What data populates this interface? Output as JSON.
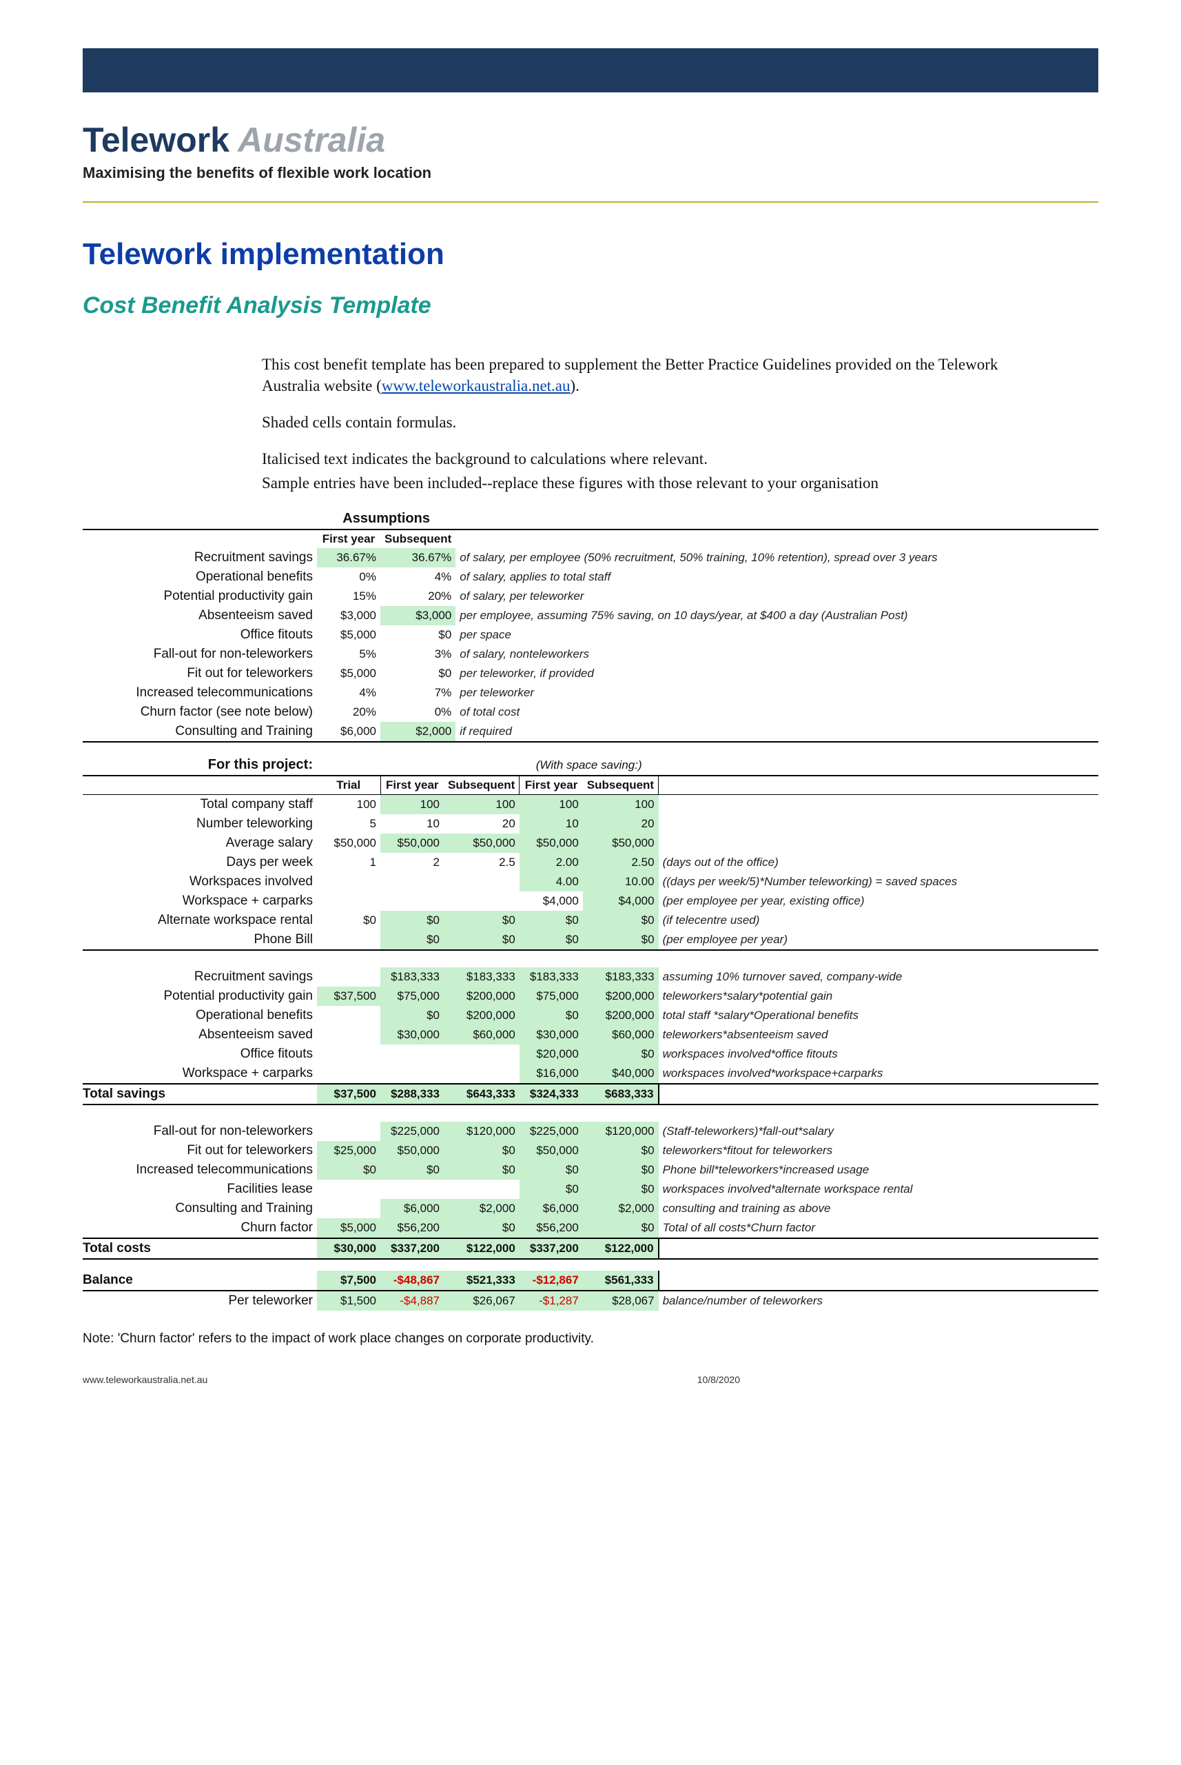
{
  "brand": {
    "name1": "Telework",
    "name2": " Australia",
    "tagline": "Maximising the benefits of flexible work location"
  },
  "titles": {
    "h1": "Telework implementation",
    "h2": "Cost Benefit Analysis Template"
  },
  "intro": {
    "p1a": "This cost benefit template has been prepared to supplement the Better Practice Guidelines provided on the Telework Australia website (",
    "link": "www.teleworkaustralia.net.au",
    "p1b": ").",
    "p2": "Shaded cells contain formulas.",
    "p3": "Italicised text indicates the background to calculations where relevant.",
    "p4": "Sample entries have been included--replace these figures with those relevant to your organisation"
  },
  "labels": {
    "assumptions": "Assumptions",
    "first_year": "First year",
    "subsequent": "Subsequent",
    "for_project": "For this project:",
    "with_space": "(With space saving:)",
    "trial": "Trial",
    "total_savings": "Total savings",
    "total_costs": "Total costs",
    "balance": "Balance",
    "per_tw": "Per teleworker",
    "note": "Note: 'Churn factor' refers to the impact of work place changes on corporate productivity."
  },
  "assumptions": [
    {
      "label": "Recruitment savings",
      "fy": "36.67%",
      "sub": "36.67%",
      "desc": "of salary, per employee (50% recruitment, 50% training, 10% retention), spread over 3 years",
      "shade": [
        true,
        true
      ]
    },
    {
      "label": "Operational benefits",
      "fy": "0%",
      "sub": "4%",
      "desc": "of salary, applies to total staff",
      "shade": [
        false,
        false
      ]
    },
    {
      "label": "Potential productivity gain",
      "fy": "15%",
      "sub": "20%",
      "desc": "of salary, per teleworker",
      "shade": [
        false,
        false
      ]
    },
    {
      "label": "Absenteeism saved",
      "fy": "$3,000",
      "sub": "$3,000",
      "desc": "per employee, assuming 75% saving, on 10 days/year, at $400 a day (Australian Post)",
      "shade": [
        false,
        true
      ]
    },
    {
      "label": "Office fitouts",
      "fy": "$5,000",
      "sub": "$0",
      "desc": "per space",
      "shade": [
        false,
        false
      ]
    },
    {
      "label": "Fall-out for non-teleworkers",
      "fy": "5%",
      "sub": "3%",
      "desc": "of salary, nonteleworkers",
      "shade": [
        false,
        false
      ]
    },
    {
      "label": "Fit out for teleworkers",
      "fy": "$5,000",
      "sub": "$0",
      "desc": "per teleworker, if provided",
      "shade": [
        false,
        false
      ]
    },
    {
      "label": "Increased telecommunications",
      "fy": "4%",
      "sub": "7%",
      "desc": "per teleworker",
      "shade": [
        false,
        false
      ]
    },
    {
      "label": "Churn factor (see note below)",
      "fy": "20%",
      "sub": "0%",
      "desc": "of total cost",
      "shade": [
        false,
        false
      ]
    },
    {
      "label": "Consulting and Training",
      "fy": "$6,000",
      "sub": "$2,000",
      "desc": "if required",
      "shade": [
        false,
        true
      ]
    }
  ],
  "project": [
    {
      "label": "Total company staff",
      "t": "100",
      "fy": "100",
      "sub": "100",
      "fy2": "100",
      "sub2": "100",
      "desc": "",
      "sh": [
        false,
        true,
        true,
        true,
        true
      ]
    },
    {
      "label": "Number teleworking",
      "t": "5",
      "fy": "10",
      "sub": "20",
      "fy2": "10",
      "sub2": "20",
      "desc": "",
      "sh": [
        false,
        false,
        false,
        true,
        true
      ]
    },
    {
      "label": "Average salary",
      "t": "$50,000",
      "fy": "$50,000",
      "sub": "$50,000",
      "fy2": "$50,000",
      "sub2": "$50,000",
      "desc": "",
      "sh": [
        false,
        true,
        true,
        true,
        true
      ]
    },
    {
      "label": "Days per week",
      "t": "1",
      "fy": "2",
      "sub": "2.5",
      "fy2": "2.00",
      "sub2": "2.50",
      "desc": "(days out of the office)",
      "sh": [
        false,
        false,
        false,
        true,
        true
      ]
    },
    {
      "label": "Workspaces involved",
      "t": "",
      "fy": "",
      "sub": "",
      "fy2": "4.00",
      "sub2": "10.00",
      "desc": "((days per week/5)*Number teleworking) = saved spaces",
      "sh": [
        false,
        false,
        false,
        true,
        true
      ]
    },
    {
      "label": "Workspace + carparks",
      "t": "",
      "fy": "",
      "sub": "",
      "fy2": "$4,000",
      "sub2": "$4,000",
      "desc": "(per employee per year, existing office)",
      "sh": [
        false,
        false,
        false,
        false,
        true
      ]
    },
    {
      "label": "Alternate workspace rental",
      "t": "$0",
      "fy": "$0",
      "sub": "$0",
      "fy2": "$0",
      "sub2": "$0",
      "desc": "(if telecentre used)",
      "sh": [
        false,
        true,
        true,
        true,
        true
      ]
    },
    {
      "label": "Phone Bill",
      "t": "",
      "fy": "$0",
      "sub": "$0",
      "fy2": "$0",
      "sub2": "$0",
      "desc": "(per employee per year)",
      "sh": [
        false,
        true,
        true,
        true,
        true
      ]
    }
  ],
  "savings": [
    {
      "label": "Recruitment savings",
      "t": "",
      "fy": "$183,333",
      "sub": "$183,333",
      "fy2": "$183,333",
      "sub2": "$183,333",
      "desc": "assuming 10% turnover saved, company-wide",
      "sh": [
        false,
        true,
        true,
        true,
        true
      ]
    },
    {
      "label": "Potential productivity gain",
      "t": "$37,500",
      "fy": "$75,000",
      "sub": "$200,000",
      "fy2": "$75,000",
      "sub2": "$200,000",
      "desc": "teleworkers*salary*potential gain",
      "sh": [
        true,
        true,
        true,
        true,
        true
      ]
    },
    {
      "label": "Operational benefits",
      "t": "",
      "fy": "$0",
      "sub": "$200,000",
      "fy2": "$0",
      "sub2": "$200,000",
      "desc": "total staff *salary*Operational benefits",
      "sh": [
        false,
        true,
        true,
        true,
        true
      ]
    },
    {
      "label": "Absenteeism saved",
      "t": "",
      "fy": "$30,000",
      "sub": "$60,000",
      "fy2": "$30,000",
      "sub2": "$60,000",
      "desc": "teleworkers*absenteeism saved",
      "sh": [
        false,
        true,
        true,
        true,
        true
      ]
    },
    {
      "label": "Office fitouts",
      "t": "",
      "fy": "",
      "sub": "",
      "fy2": "$20,000",
      "sub2": "$0",
      "desc": "workspaces involved*office fitouts",
      "sh": [
        false,
        false,
        false,
        true,
        true
      ]
    },
    {
      "label": "Workspace + carparks",
      "t": "",
      "fy": "",
      "sub": "",
      "fy2": "$16,000",
      "sub2": "$40,000",
      "desc": "workspaces involved*workspace+carparks",
      "sh": [
        false,
        false,
        false,
        true,
        true
      ]
    }
  ],
  "totals_savings": {
    "t": "$37,500",
    "fy": "$288,333",
    "sub": "$643,333",
    "fy2": "$324,333",
    "sub2": "$683,333"
  },
  "costs": [
    {
      "label": "Fall-out for non-teleworkers",
      "t": "",
      "fy": "$225,000",
      "sub": "$120,000",
      "fy2": "$225,000",
      "sub2": "$120,000",
      "desc": "(Staff-teleworkers)*fall-out*salary",
      "sh": [
        false,
        true,
        true,
        true,
        true
      ]
    },
    {
      "label": "Fit out for teleworkers",
      "t": "$25,000",
      "fy": "$50,000",
      "sub": "$0",
      "fy2": "$50,000",
      "sub2": "$0",
      "desc": "teleworkers*fitout for teleworkers",
      "sh": [
        true,
        true,
        true,
        true,
        true
      ]
    },
    {
      "label": "Increased telecommunications",
      "t": "$0",
      "fy": "$0",
      "sub": "$0",
      "fy2": "$0",
      "sub2": "$0",
      "desc": "Phone bill*teleworkers*increased usage",
      "sh": [
        true,
        true,
        true,
        true,
        true
      ]
    },
    {
      "label": "Facilities lease",
      "t": "",
      "fy": "",
      "sub": "",
      "fy2": "$0",
      "sub2": "$0",
      "desc": "workspaces involved*alternate workspace rental",
      "sh": [
        false,
        false,
        false,
        true,
        true
      ]
    },
    {
      "label": "Consulting and Training",
      "t": "",
      "fy": "$6,000",
      "sub": "$2,000",
      "fy2": "$6,000",
      "sub2": "$2,000",
      "desc": "consulting and training as above",
      "sh": [
        false,
        true,
        true,
        true,
        true
      ]
    },
    {
      "label": "Churn factor",
      "t": "$5,000",
      "fy": "$56,200",
      "sub": "$0",
      "fy2": "$56,200",
      "sub2": "$0",
      "desc": "Total of all costs*Churn factor",
      "sh": [
        true,
        true,
        true,
        true,
        true
      ]
    }
  ],
  "totals_costs": {
    "t": "$30,000",
    "fy": "$337,200",
    "sub": "$122,000",
    "fy2": "$337,200",
    "sub2": "$122,000"
  },
  "balance": {
    "t": "$7,500",
    "fy": "-$48,867",
    "sub": "$521,333",
    "fy2": "-$12,867",
    "sub2": "$561,333"
  },
  "per_tw": {
    "t": "$1,500",
    "fy": "-$4,887",
    "sub": "$26,067",
    "fy2": "-$1,287",
    "sub2": "$28,067",
    "desc": "balance/number of teleworkers"
  },
  "footer": {
    "url": "www.teleworkaustralia.net.au",
    "date": "10/8/2020"
  }
}
